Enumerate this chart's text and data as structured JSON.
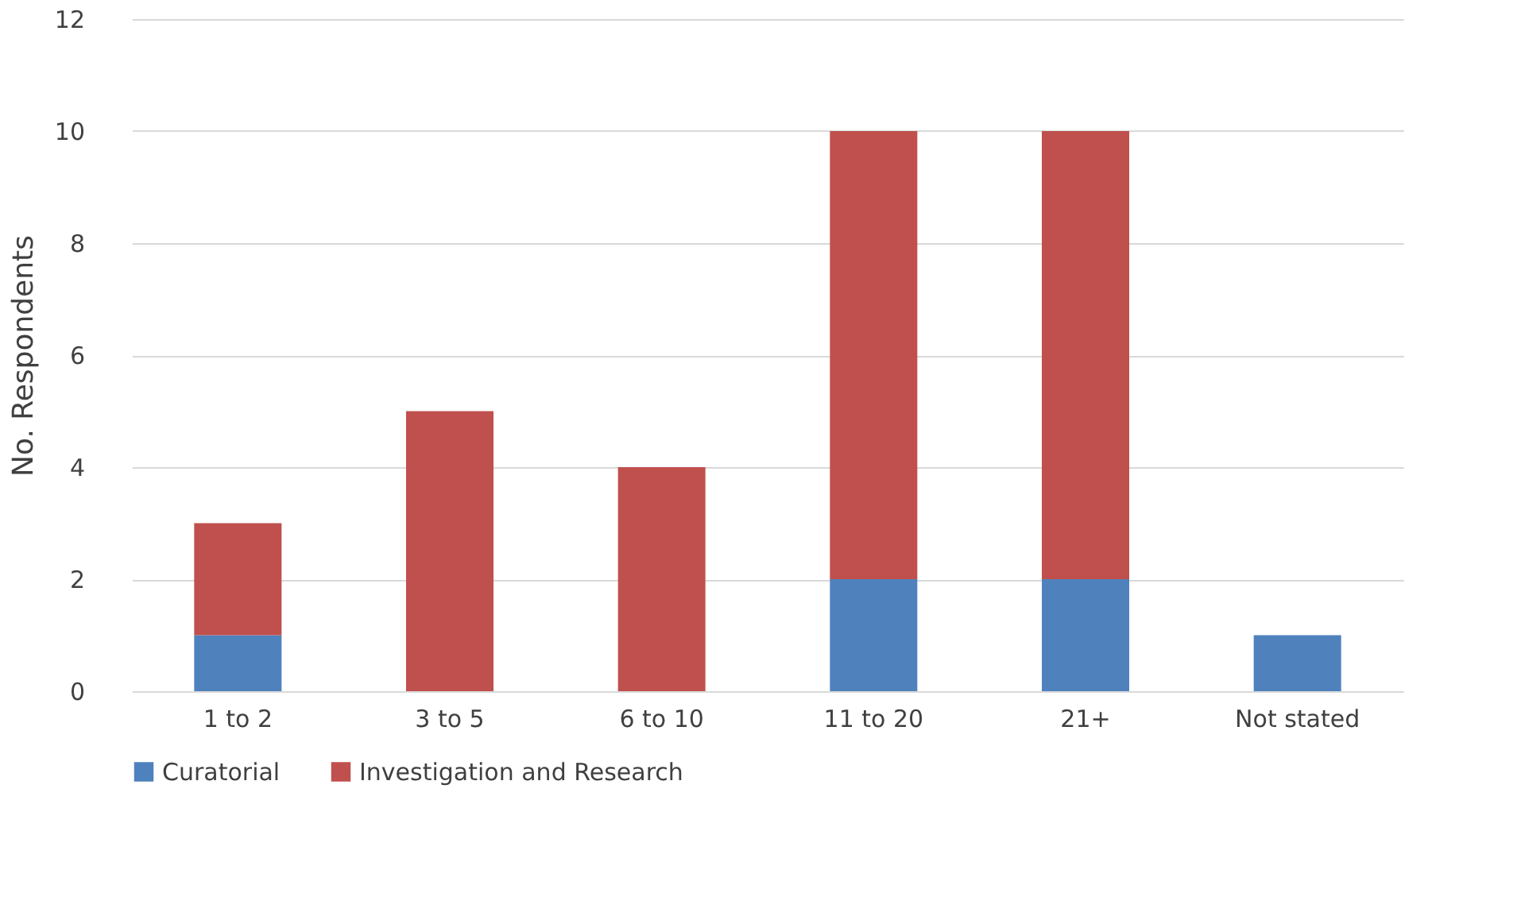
{
  "chart_data": {
    "type": "bar",
    "stacked": true,
    "ylabel": "No. Respondents",
    "categories": [
      "1 to 2",
      "3 to 5",
      "6 to 10",
      "11 to 20",
      "21+",
      "Not stated"
    ],
    "series": [
      {
        "name": "Curatorial",
        "color": "#4f81bd",
        "values": [
          1,
          0,
          0,
          2,
          2,
          1
        ]
      },
      {
        "name": "Investigation and Research",
        "color": "#c0504d",
        "values": [
          2,
          5,
          4,
          8,
          8,
          0
        ]
      }
    ],
    "ylim": [
      0,
      12
    ],
    "yticks": [
      0,
      2,
      4,
      6,
      8,
      10,
      12
    ],
    "grid": "y",
    "legend": "bottom"
  }
}
